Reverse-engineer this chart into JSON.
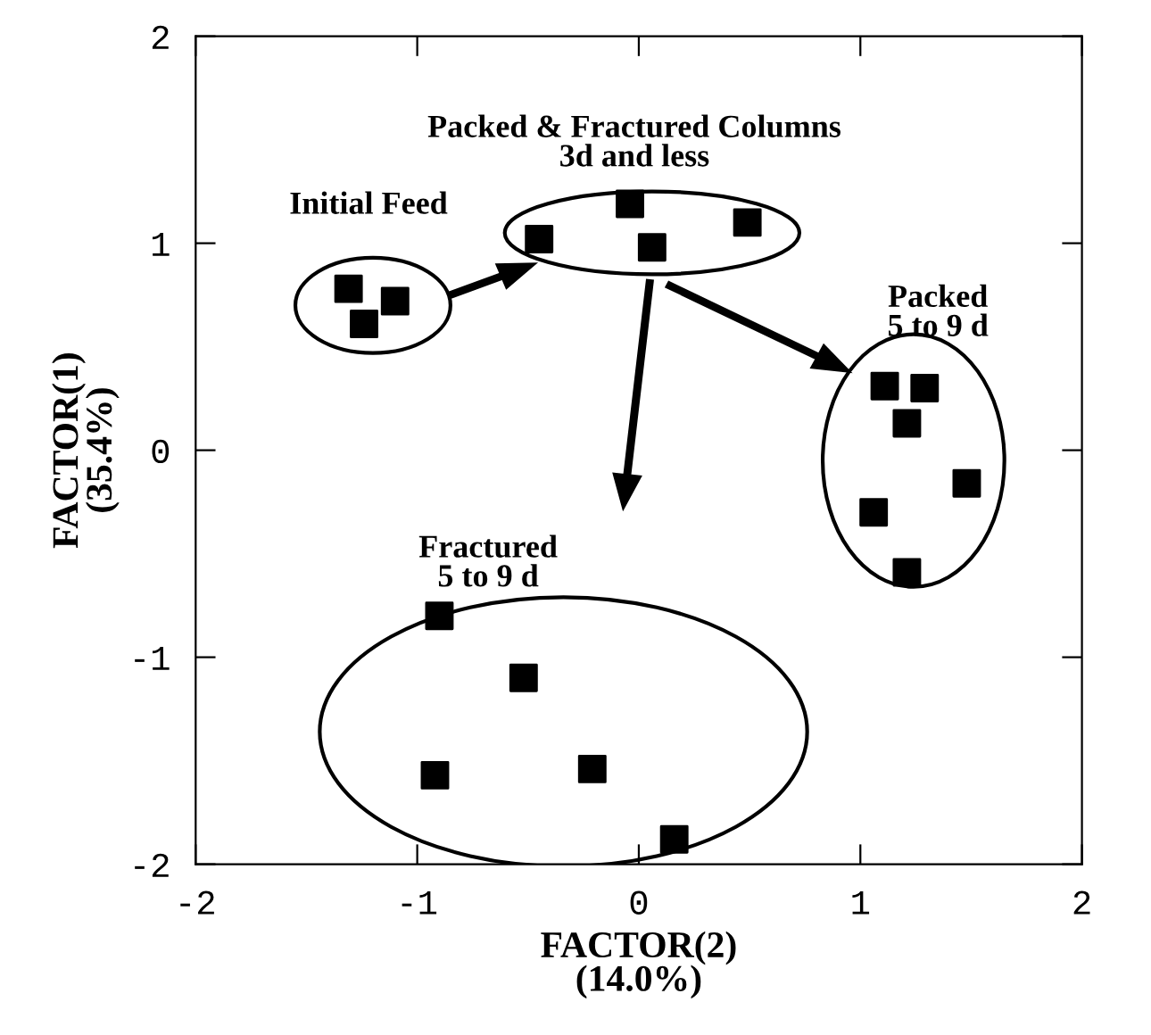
{
  "chart_data": {
    "type": "scatter",
    "xlabel": "FACTOR(2)\n(14.0%)",
    "ylabel": "FACTOR(1)\n(35.4%)",
    "x": [
      -1.31,
      -1.1,
      -1.24,
      -0.45,
      -0.04,
      0.06,
      0.49,
      1.11,
      1.29,
      1.21,
      1.48,
      1.06,
      1.21,
      -0.9,
      -0.52,
      -0.92,
      -0.21,
      0.16
    ],
    "series": [
      {
        "color": "#000000",
        "values": [
          0.78,
          0.72,
          0.61,
          1.02,
          1.19,
          0.98,
          1.1,
          0.31,
          0.3,
          0.13,
          -0.16,
          -0.3,
          -0.59,
          -0.8,
          -1.1,
          -1.57,
          -1.54,
          -1.88
        ]
      }
    ],
    "marker": "square",
    "xlim": [
      -2,
      2
    ],
    "ylim": [
      -2,
      2
    ],
    "xticks": [
      -2,
      -1,
      0,
      1,
      2
    ],
    "yticks": [
      -2,
      -1,
      0,
      1,
      2
    ],
    "grid": false,
    "legend": false,
    "annotations": [
      "Initial Feed",
      "Packed & Fractured Columns\n3d and less",
      "Packed\n5 to 9 d",
      "Fractured\n5 to 9 d"
    ]
  }
}
